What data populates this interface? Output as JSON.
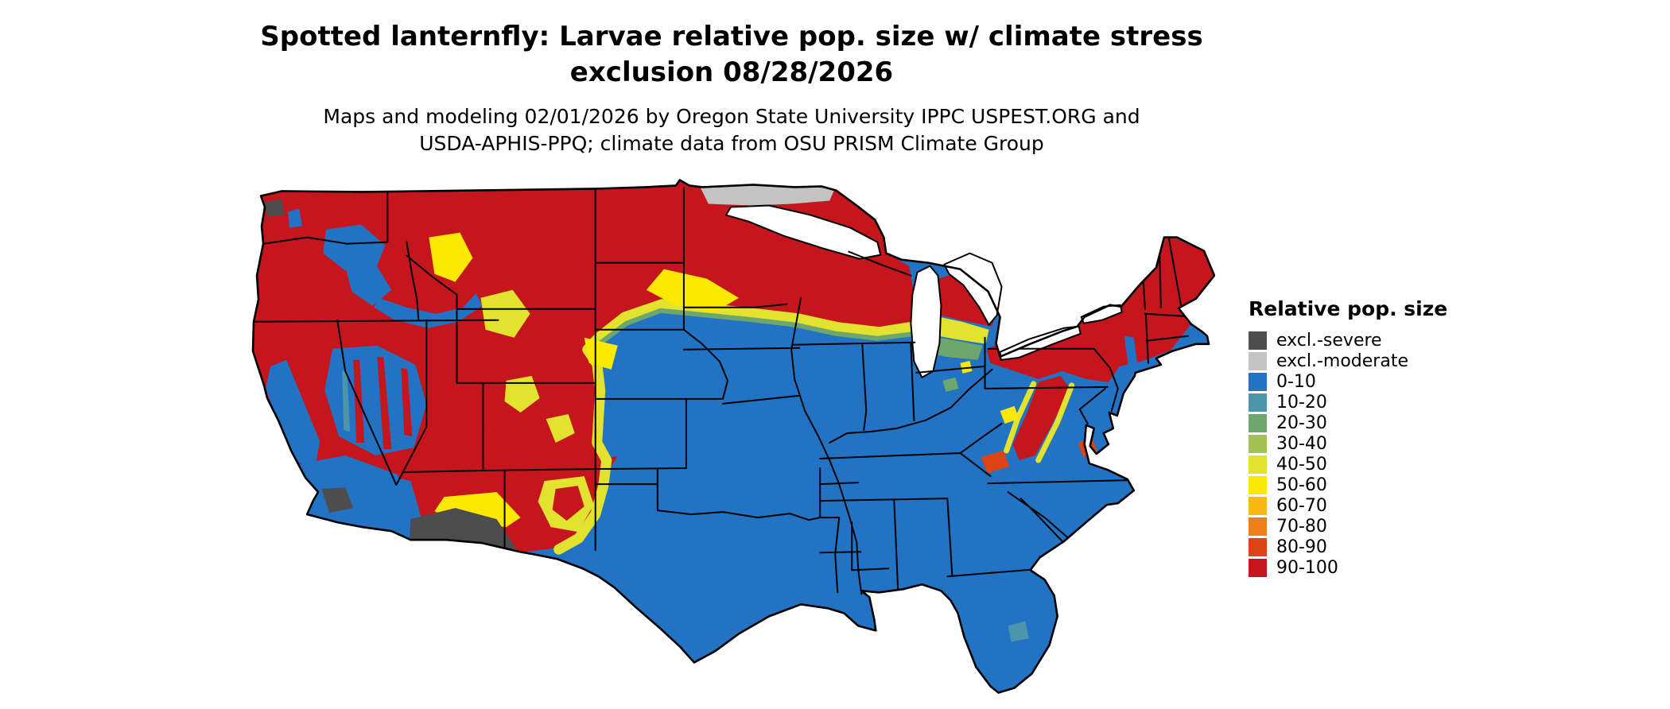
{
  "header": {
    "title_line1": "Spotted lanternfly: Larvae relative pop. size w/ climate stress",
    "title_line2": "exclusion 08/28/2026",
    "subtitle_line1": "Maps and modeling 02/01/2026 by Oregon State University IPPC USPEST.ORG and",
    "subtitle_line2": "USDA-APHIS-PPQ; climate data from OSU PRISM Climate Group"
  },
  "legend": {
    "title": "Relative pop. size",
    "items": [
      {
        "label": "excl.-severe",
        "color": "#4d4d4d"
      },
      {
        "label": "excl.-moderate",
        "color": "#c3c3c3"
      },
      {
        "label": "0-10",
        "color": "#2273c4"
      },
      {
        "label": "10-20",
        "color": "#4b96ab"
      },
      {
        "label": "20-30",
        "color": "#6ea76d"
      },
      {
        "label": "30-40",
        "color": "#a3c254"
      },
      {
        "label": "40-50",
        "color": "#e1e32e"
      },
      {
        "label": "50-60",
        "color": "#fce903"
      },
      {
        "label": "60-70",
        "color": "#f9b812"
      },
      {
        "label": "70-80",
        "color": "#ef7e17"
      },
      {
        "label": "80-90",
        "color": "#dc4414"
      },
      {
        "label": "90-100",
        "color": "#c4161c"
      }
    ]
  },
  "colors": {
    "excl_severe": "#4d4d4d",
    "excl_moderate": "#c3c3c3",
    "v0": "#2273c4",
    "v10": "#4b96ab",
    "v20": "#6ea76d",
    "v30": "#a3c254",
    "v40": "#e1e32e",
    "v50": "#fce903",
    "v60": "#f9b812",
    "v70": "#ef7e17",
    "v80": "#dc4414",
    "v90": "#c4161c",
    "border": "#000000",
    "water": "#ffffff"
  }
}
